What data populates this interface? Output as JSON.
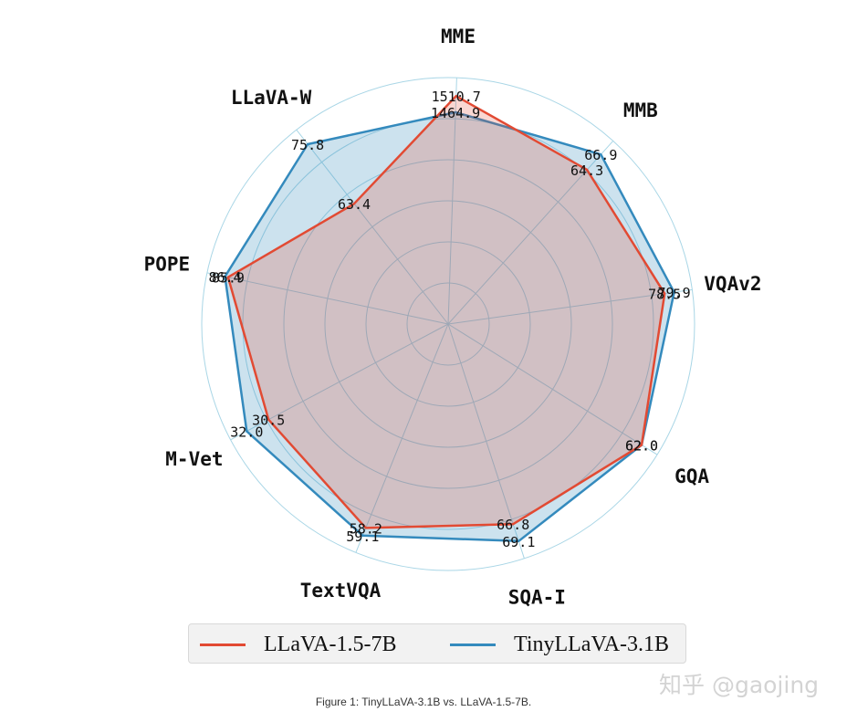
{
  "chart_data": {
    "type": "radar",
    "axes": [
      "VQAv2",
      "GQA",
      "SQA-I",
      "TextVQA",
      "M-Vet",
      "POPE",
      "LLaVA-W",
      "MME",
      "MMB"
    ],
    "series": [
      {
        "name": "LLaVA-1.5-7B",
        "color": "#e24a33",
        "fill": "rgba(226,74,51,0.22)",
        "values": [
          78.5,
          62.0,
          66.8,
          58.2,
          30.5,
          85.9,
          63.4,
          1510.7,
          64.3
        ],
        "labels": [
          "78.5",
          "62.0",
          "66.8",
          "58.2",
          "30.5",
          "85.9",
          "63.4",
          "1510.7",
          "64.3"
        ]
      },
      {
        "name": "TinyLLaVA-3.1B",
        "color": "#348abd",
        "fill": "rgba(52,138,189,0.25)",
        "values": [
          79.9,
          62.0,
          69.1,
          59.1,
          32.0,
          86.4,
          75.8,
          1464.9,
          66.9
        ],
        "labels": [
          "79.9",
          "62.0",
          "69.1",
          "59.1",
          "32.0",
          "86.4",
          "75.8",
          "1464.9",
          "66.9"
        ]
      }
    ],
    "grid": true,
    "legend_position": "bottom"
  },
  "caption": "Figure 1: TinyLLaVA-3.1B vs. LLaVA-1.5-7B.",
  "watermark": "知乎 @gaojing"
}
